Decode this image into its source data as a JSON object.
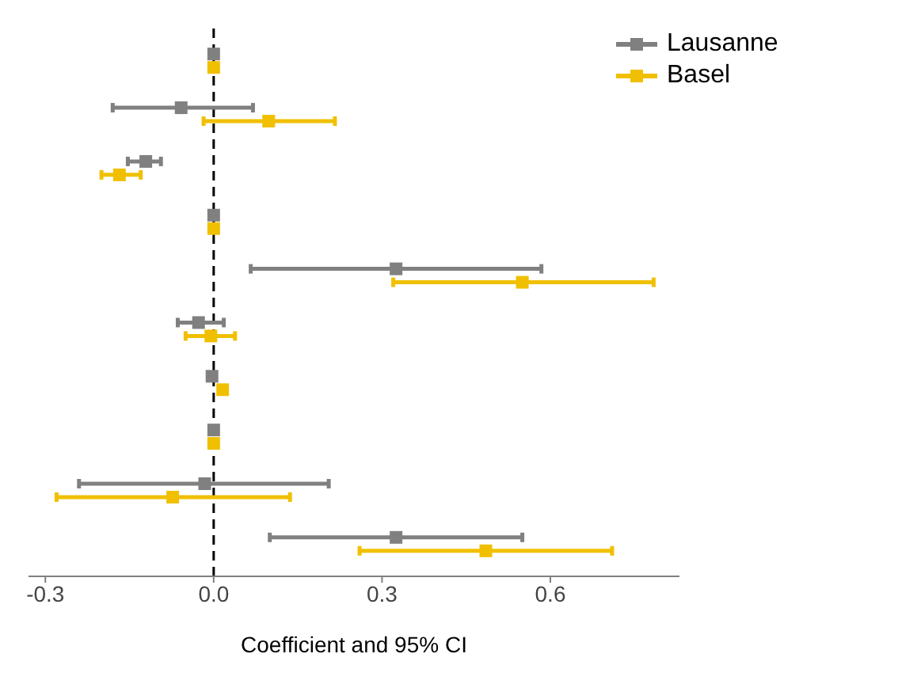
{
  "chart_data": {
    "type": "scatter",
    "orientation": "horizontal",
    "categories": [
      null,
      null,
      null,
      null,
      null,
      null,
      null,
      null,
      null,
      null
    ],
    "xlabel": "Coefficient and 95% CI",
    "xlim": [
      -0.33,
      0.83
    ],
    "xticks": [
      {
        "value": -0.3,
        "label": "-0.3"
      },
      {
        "value": 0,
        "label": "0.0"
      },
      {
        "value": 0.3,
        "label": "0.3"
      },
      {
        "value": 0.6,
        "label": "0.6"
      }
    ],
    "tick_labels": "x",
    "marker": "square",
    "legend": "top right",
    "ref_lines": [
      {
        "axis": "x",
        "value": 0,
        "color": "#000000",
        "line_style": "dashed"
      }
    ],
    "series": [
      {
        "name": "Lausanne",
        "color": "#808080",
        "values": [
          0,
          -0.058,
          -0.121,
          0,
          0.325,
          -0.027,
          -0.003,
          0,
          -0.016,
          0.325
        ],
        "errors": [
          null,
          [
            -0.18,
            0.07
          ],
          [
            -0.153,
            -0.094
          ],
          null,
          [
            0.066,
            0.584
          ],
          [
            -0.064,
            0.018
          ],
          null,
          null,
          [
            -0.24,
            0.205
          ],
          [
            0.1,
            0.55
          ]
        ]
      },
      {
        "name": "Basel",
        "color": "#f0c000",
        "values": [
          0,
          0.098,
          -0.168,
          0,
          0.55,
          -0.005,
          0.016,
          0,
          -0.073,
          0.485
        ],
        "errors": [
          null,
          [
            -0.018,
            0.216
          ],
          [
            -0.2,
            -0.13
          ],
          null,
          [
            0.32,
            0.784
          ],
          [
            -0.05,
            0.038
          ],
          null,
          null,
          [
            -0.28,
            0.136
          ],
          [
            0.26,
            0.71
          ]
        ]
      }
    ]
  }
}
